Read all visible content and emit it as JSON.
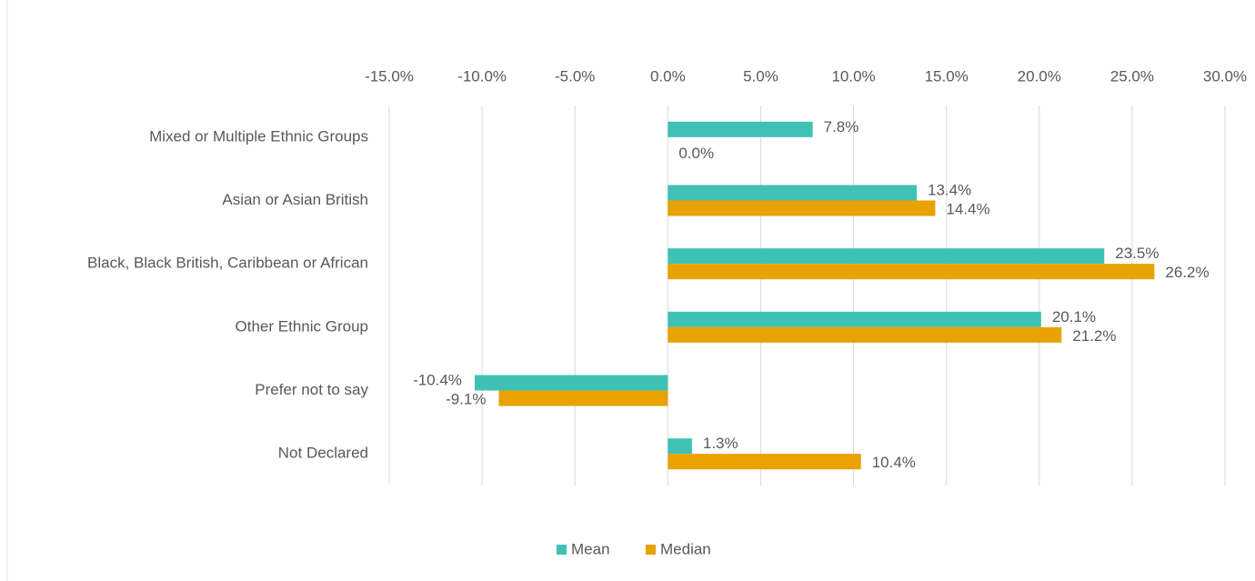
{
  "chart_data": {
    "type": "bar",
    "orientation": "horizontal",
    "categories": [
      "Mixed or Multiple Ethnic Groups",
      "Asian or Asian British",
      "Black, Black British, Caribbean or African",
      "Other Ethnic Group",
      "Prefer not to say",
      "Not Declared"
    ],
    "series": [
      {
        "name": "Mean",
        "color": "#3fc1b6",
        "values": [
          7.8,
          13.4,
          23.5,
          20.1,
          -10.4,
          1.3
        ],
        "value_labels": [
          "7.8%",
          "13.4%",
          "23.5%",
          "20.1%",
          "-10.4%",
          "1.3%"
        ]
      },
      {
        "name": "Median",
        "color": "#e8a202",
        "values": [
          0.0,
          14.4,
          26.2,
          21.2,
          -9.1,
          10.4
        ],
        "value_labels": [
          "0.0%",
          "14.4%",
          "26.2%",
          "21.2%",
          "-9.1%",
          "10.4%"
        ]
      }
    ],
    "xlim": [
      -15,
      30
    ],
    "xticks": [
      {
        "value": -15,
        "label": "-15.0%"
      },
      {
        "value": -10,
        "label": "-10.0%"
      },
      {
        "value": -5,
        "label": "-5.0%"
      },
      {
        "value": 0,
        "label": "0.0%"
      },
      {
        "value": 5,
        "label": "5.0%"
      },
      {
        "value": 10,
        "label": "10.0%"
      },
      {
        "value": 15,
        "label": "15.0%"
      },
      {
        "value": 20,
        "label": "20.0%"
      },
      {
        "value": 25,
        "label": "25.0%"
      },
      {
        "value": 30,
        "label": "30.0%"
      }
    ],
    "grid": true,
    "legend": "bottom"
  }
}
